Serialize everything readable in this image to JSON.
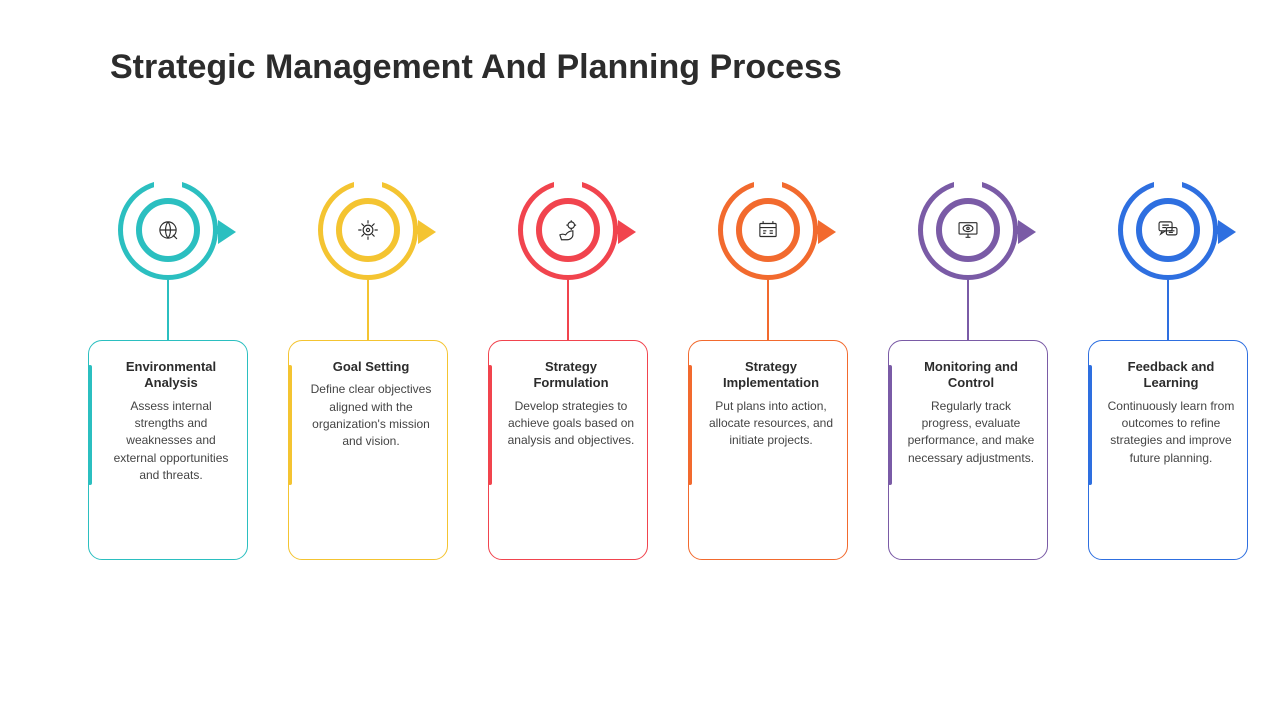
{
  "title": "Strategic Management And Planning Process",
  "title_color": "#2c2c2c",
  "background_color": "#ffffff",
  "title_fontsize": 34,
  "card_title_fontsize": 13,
  "card_desc_fontsize": 12,
  "steps": [
    {
      "color": "#2bbfc0",
      "icon": "globe-analysis",
      "heading": "Environmental Analysis",
      "desc": "Assess internal strengths and weaknesses and external opportunities and threats."
    },
    {
      "color": "#f4c431",
      "icon": "goal-gear",
      "heading": "Goal Setting",
      "desc": "Define clear objectives aligned with the organization's mission and vision."
    },
    {
      "color": "#f1444e",
      "icon": "strategy-hand",
      "heading": "Strategy Formulation",
      "desc": "Develop strategies to achieve goals based on analysis and objectives."
    },
    {
      "color": "#f26a2e",
      "icon": "implementation-plan",
      "heading": "Strategy Implementation",
      "desc": "Put plans into action, allocate resources, and initiate projects."
    },
    {
      "color": "#7a5ba6",
      "icon": "monitor-eye",
      "heading": "Monitoring and Control",
      "desc": "Regularly track progress, evaluate performance, and make necessary adjustments."
    },
    {
      "color": "#2e6fe0",
      "icon": "feedback-chat",
      "heading": "Feedback and Learning",
      "desc": "Continuously learn from outcomes to refine strategies and improve future planning."
    }
  ]
}
